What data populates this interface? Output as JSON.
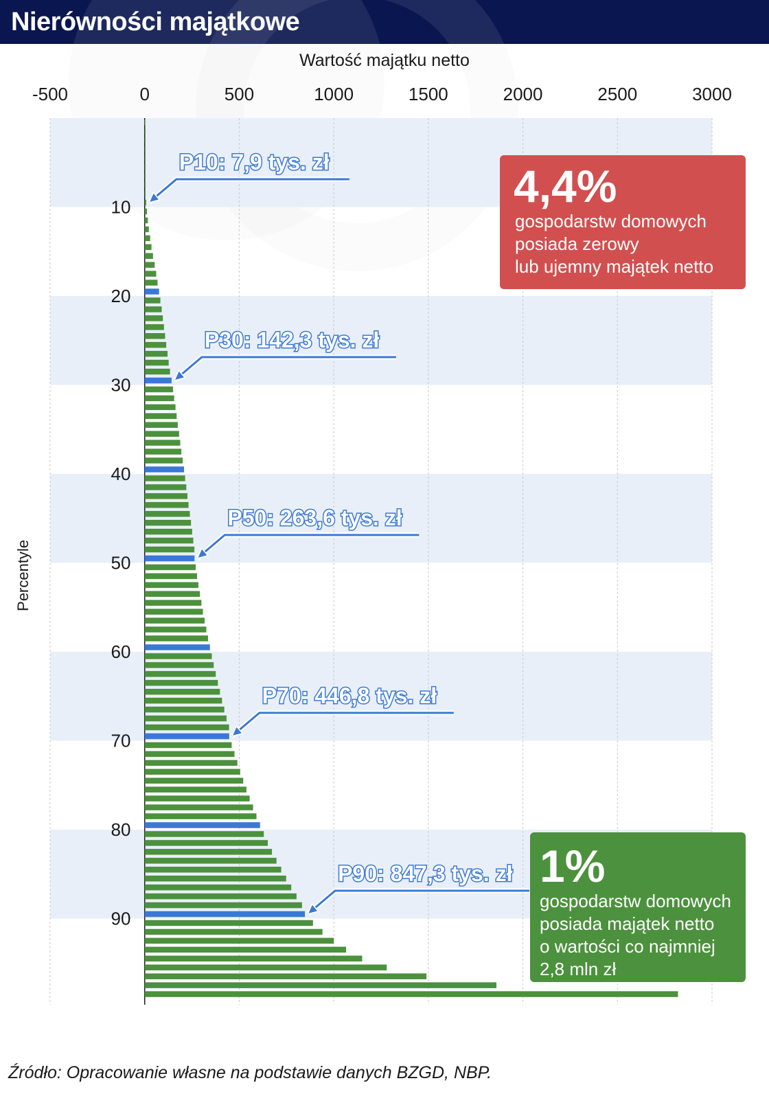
{
  "header": {
    "title": "Nierówności majątkowe"
  },
  "axes": {
    "x_label": "Wartość majątku netto",
    "y_label": "Percentyle"
  },
  "callouts": {
    "negative": {
      "value": "4,4%",
      "lines": [
        "gospodarstw domowych",
        "posiada zerowy",
        "lub ujemny majątek netto"
      ],
      "color": "#d24f4f"
    },
    "top": {
      "value": "1%",
      "lines": [
        "gospodarstw domowych",
        "posiada majątek netto",
        "o wartości co najmniej",
        "2,8 mln zł"
      ],
      "color": "#4c913d"
    }
  },
  "source": "Źródło: Opracowanie własne na podstawie danych BZGD, NBP.",
  "colors": {
    "bar": "#4c913d",
    "bar_highlight": "#3a78d6",
    "band": "#e9eff9",
    "header": "#0a1650",
    "label_fill": "#ffffff",
    "label_stroke": "#3a78d6",
    "arrow": "#3a78d6"
  },
  "chart_data": {
    "type": "bar",
    "orientation": "horizontal",
    "x_ticks": [
      -500,
      0,
      500,
      1000,
      1500,
      2000,
      2500,
      3000
    ],
    "x_tick_labels": [
      "-500",
      "0",
      "500",
      "1000",
      "1500",
      "2000",
      "2500",
      "3000"
    ],
    "y_ticks": [
      10,
      20,
      30,
      40,
      50,
      60,
      70,
      80,
      90
    ],
    "y_tick_labels": [
      "10",
      "20",
      "30",
      "40",
      "50",
      "60",
      "70",
      "80",
      "90"
    ],
    "xlim": [
      -500,
      3000
    ],
    "ylim": [
      0,
      100
    ],
    "highlighted_percentiles": [
      20,
      30,
      40,
      50,
      60,
      70,
      80,
      90
    ],
    "percentiles": [
      1,
      2,
      3,
      4,
      5,
      6,
      7,
      8,
      9,
      10,
      11,
      12,
      13,
      14,
      15,
      16,
      17,
      18,
      19,
      20,
      21,
      22,
      23,
      24,
      25,
      26,
      27,
      28,
      29,
      30,
      31,
      32,
      33,
      34,
      35,
      36,
      37,
      38,
      39,
      40,
      41,
      42,
      43,
      44,
      45,
      46,
      47,
      48,
      49,
      50,
      51,
      52,
      53,
      54,
      55,
      56,
      57,
      58,
      59,
      60,
      61,
      62,
      63,
      64,
      65,
      66,
      67,
      68,
      69,
      70,
      71,
      72,
      73,
      74,
      75,
      76,
      77,
      78,
      79,
      80,
      81,
      82,
      83,
      84,
      85,
      86,
      87,
      88,
      89,
      90,
      91,
      92,
      93,
      94,
      95,
      96,
      97,
      98,
      99
    ],
    "values": [
      -1,
      0,
      0,
      0,
      0,
      0,
      1,
      2,
      4,
      7.9,
      12,
      17,
      22,
      29,
      36,
      44,
      53,
      61,
      68,
      76,
      83,
      90,
      96,
      102,
      108,
      114,
      121,
      127,
      134,
      142.3,
      150,
      156,
      163,
      169,
      175,
      182,
      188,
      194,
      201,
      208,
      214,
      220,
      226,
      232,
      239,
      245,
      251,
      257,
      263,
      263.6,
      270,
      277,
      284,
      292,
      300,
      308,
      317,
      326,
      335,
      345,
      355,
      365,
      376,
      387,
      398,
      409,
      421,
      433,
      446,
      446.8,
      460,
      475,
      490,
      505,
      521,
      538,
      555,
      573,
      591,
      610,
      630,
      651,
      673,
      697,
      722,
      748,
      775,
      803,
      832,
      847.3,
      890,
      940,
      1000,
      1065,
      1150,
      1280,
      1490,
      1860,
      2820
    ],
    "annotations": [
      {
        "percentile": 10,
        "text": "P10: 7,9 tys. zł"
      },
      {
        "percentile": 30,
        "text": "P30: 142,3 tys. zł"
      },
      {
        "percentile": 50,
        "text": "P50: 263,6 tys. zł"
      },
      {
        "percentile": 70,
        "text": "P70: 446,8 tys. zł"
      },
      {
        "percentile": 90,
        "text": "P90: 847,3 tys. zł"
      }
    ],
    "grid": true
  }
}
